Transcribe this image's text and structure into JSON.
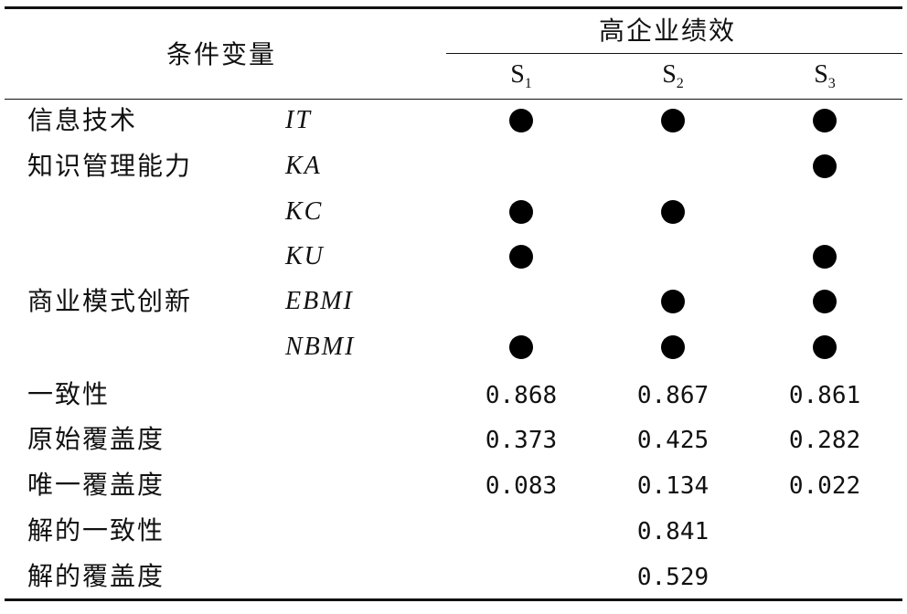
{
  "header": {
    "condition_label": "条件变量",
    "outcome_label": "高企业绩效",
    "solutions": [
      {
        "base": "S",
        "sub": "1"
      },
      {
        "base": "S",
        "sub": "2"
      },
      {
        "base": "S",
        "sub": "3"
      }
    ]
  },
  "rows": [
    {
      "group": "信息技术",
      "code": "IT",
      "marks": [
        true,
        true,
        true
      ]
    },
    {
      "group": "知识管理能力",
      "code": "KA",
      "marks": [
        false,
        false,
        true
      ]
    },
    {
      "group": "",
      "code": "KC",
      "marks": [
        true,
        true,
        false
      ]
    },
    {
      "group": "",
      "code": "KU",
      "marks": [
        true,
        false,
        true
      ]
    },
    {
      "group": "商业模式创新",
      "code": "EBMI",
      "marks": [
        false,
        true,
        true
      ]
    },
    {
      "group": "",
      "code": "NBMI",
      "marks": [
        true,
        true,
        true
      ]
    }
  ],
  "metrics": [
    {
      "label": "一致性",
      "values": [
        "0.868",
        "0.867",
        "0.861"
      ]
    },
    {
      "label": "原始覆盖度",
      "values": [
        "0.373",
        "0.425",
        "0.282"
      ]
    },
    {
      "label": "唯一覆盖度",
      "values": [
        "0.083",
        "0.134",
        "0.022"
      ]
    }
  ],
  "overall": [
    {
      "label": "解的一致性",
      "value": "0.841"
    },
    {
      "label": "解的覆盖度",
      "value": "0.529"
    }
  ],
  "legend_mark": "filled-circle"
}
